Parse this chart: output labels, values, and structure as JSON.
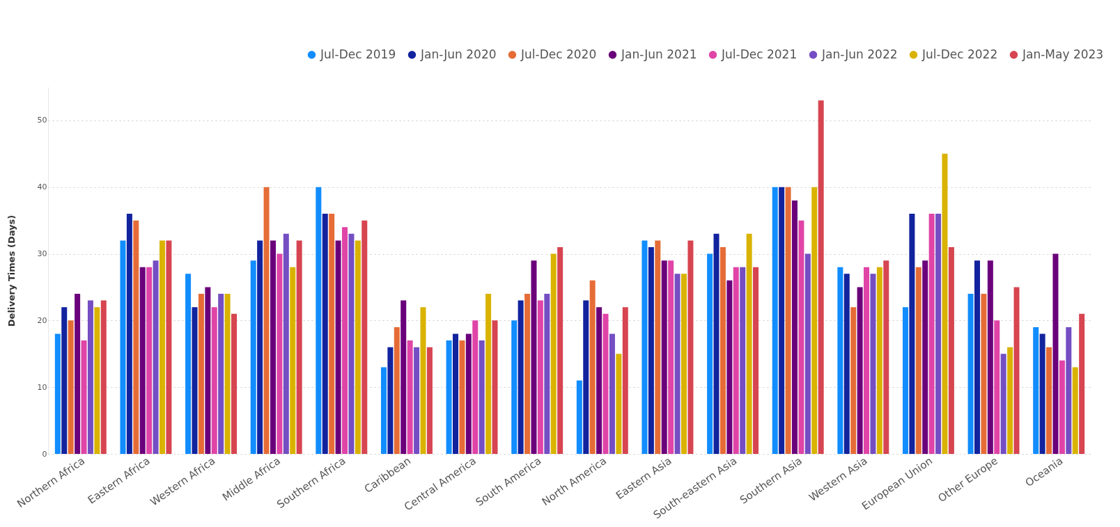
{
  "chart_data": {
    "type": "bar",
    "ylabel": "Delivery Times (Days)",
    "categories": [
      "Northern Africa",
      "Eastern Africa",
      "Western Africa",
      "Middle Africa",
      "Southern Africa",
      "Caribbean",
      "Central America",
      "South America",
      "North America",
      "Eastern Asia",
      "South-eastern Asia",
      "Southern Asia",
      "Western Asia",
      "European Union",
      "Other Europe",
      "Oceania"
    ],
    "series": [
      {
        "name": "Jul-Dec 2019",
        "color": "#118dff",
        "values": [
          18,
          32,
          27,
          29,
          40,
          13,
          17,
          20,
          11,
          32,
          30,
          40,
          28,
          22,
          24,
          19
        ]
      },
      {
        "name": "Jan-Jun 2020",
        "color": "#12239e",
        "values": [
          22,
          36,
          22,
          32,
          36,
          16,
          18,
          23,
          23,
          31,
          33,
          40,
          27,
          36,
          29,
          18
        ]
      },
      {
        "name": "Jul-Dec 2020",
        "color": "#e66c37",
        "values": [
          20,
          35,
          24,
          40,
          36,
          19,
          17,
          24,
          26,
          32,
          31,
          40,
          22,
          28,
          24,
          16
        ]
      },
      {
        "name": "Jan-Jun 2021",
        "color": "#6b007b",
        "values": [
          24,
          28,
          25,
          32,
          32,
          23,
          18,
          29,
          22,
          29,
          26,
          38,
          25,
          29,
          29,
          30
        ]
      },
      {
        "name": "Jul-Dec 2021",
        "color": "#e044a7",
        "values": [
          17,
          28,
          22,
          30,
          34,
          17,
          20,
          23,
          21,
          29,
          28,
          35,
          28,
          36,
          20,
          14
        ]
      },
      {
        "name": "Jan-Jun 2022",
        "color": "#744ec2",
        "values": [
          23,
          29,
          24,
          33,
          33,
          16,
          17,
          24,
          18,
          27,
          28,
          30,
          27,
          36,
          15,
          19
        ]
      },
      {
        "name": "Jul-Dec 2022",
        "color": "#d9b300",
        "values": [
          22,
          32,
          24,
          28,
          32,
          22,
          24,
          30,
          15,
          27,
          33,
          40,
          28,
          45,
          16,
          13
        ]
      },
      {
        "name": "Jan-May 2023",
        "color": "#d64550",
        "values": [
          23,
          32,
          21,
          32,
          35,
          16,
          20,
          31,
          22,
          32,
          28,
          53,
          29,
          31,
          25,
          21
        ]
      }
    ],
    "ylim": [
      0,
      55
    ],
    "yticks": [
      0,
      10,
      20,
      30,
      40,
      50
    ],
    "grid": "y",
    "legend": "top right"
  }
}
